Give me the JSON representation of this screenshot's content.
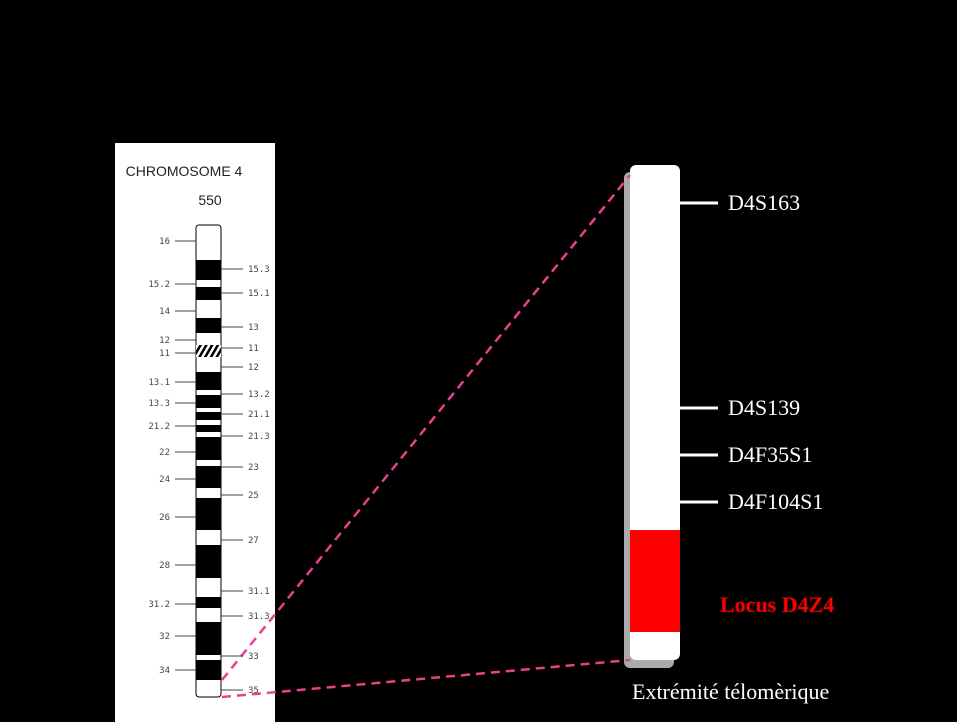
{
  "ideogram": {
    "title": "CHROMOSOME 4",
    "resolution": "550",
    "left_bands": [
      "16",
      "15.2",
      "14",
      "12",
      "11",
      "13.1",
      "13.3",
      "21.2",
      "22",
      "24",
      "26",
      "28",
      "31.2",
      "32",
      "34"
    ],
    "right_bands": [
      "15.3",
      "15.1",
      "13",
      "11",
      "12",
      "13.2",
      "21.1",
      "21.3",
      "23",
      "25",
      "27",
      "31.1",
      "31.3",
      "33",
      "35"
    ]
  },
  "zoom": {
    "markers": [
      "D4S163",
      "D4S139",
      "D4F35S1",
      "D4F104S1"
    ],
    "locus": "Locus D4Z4",
    "telomere": "Extrémité télomèrique"
  }
}
